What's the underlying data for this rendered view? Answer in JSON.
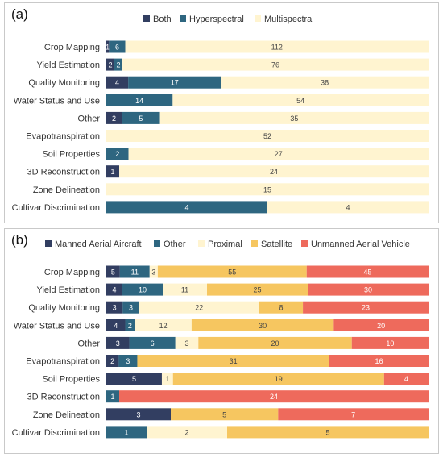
{
  "chart_data": [
    {
      "type": "bar",
      "orientation": "horizontal",
      "stacked": "percent",
      "panel_label": "(a)",
      "legend_position": "top",
      "grid": false,
      "categories": [
        "Crop Mapping",
        "Yield Estimation",
        "Quality Monitoring",
        "Water Status and Use",
        "Other",
        "Evapotranspiration",
        "Soil Properties",
        "3D Reconstruction",
        "Zone Delineation",
        "Cultivar Discrimination"
      ],
      "series": [
        {
          "name": "Both",
          "color": "#323e61",
          "values": [
            1,
            2,
            4,
            0,
            2,
            0,
            0,
            1,
            0,
            0
          ]
        },
        {
          "name": "Hyperspectral",
          "color": "#2e6680",
          "values": [
            6,
            2,
            17,
            14,
            5,
            0,
            2,
            0,
            0,
            4
          ]
        },
        {
          "name": "Multispectral",
          "color": "#fff4d0",
          "values": [
            112,
            76,
            38,
            54,
            35,
            52,
            27,
            24,
            15,
            4
          ]
        }
      ]
    },
    {
      "type": "bar",
      "orientation": "horizontal",
      "stacked": "percent",
      "panel_label": "(b)",
      "legend_position": "top",
      "grid": false,
      "categories": [
        "Crop Mapping",
        "Yield Estimation",
        "Quality Monitoring",
        "Water Status and Use",
        "Other",
        "Evapotranspiration",
        "Soil Properties",
        "3D Reconstruction",
        "Zone Delineation",
        "Cultivar Discrimination"
      ],
      "series": [
        {
          "name": "Manned Aerial Aircraft",
          "color": "#323e61",
          "values": [
            5,
            4,
            3,
            4,
            3,
            2,
            5,
            0,
            3,
            0
          ]
        },
        {
          "name": "Other",
          "color": "#2e6680",
          "values": [
            11,
            10,
            3,
            2,
            6,
            3,
            0,
            1,
            0,
            1
          ]
        },
        {
          "name": "Proximal",
          "color": "#fff4d0",
          "values": [
            3,
            11,
            22,
            12,
            3,
            0,
            1,
            0,
            0,
            2
          ]
        },
        {
          "name": "Satellite",
          "color": "#f6c660",
          "values": [
            55,
            25,
            8,
            30,
            20,
            31,
            19,
            0,
            5,
            5
          ]
        },
        {
          "name": "Unmanned Aerial Vehicle",
          "color": "#ee6a5c",
          "values": [
            45,
            30,
            23,
            20,
            10,
            16,
            4,
            24,
            7,
            0
          ]
        }
      ]
    }
  ]
}
